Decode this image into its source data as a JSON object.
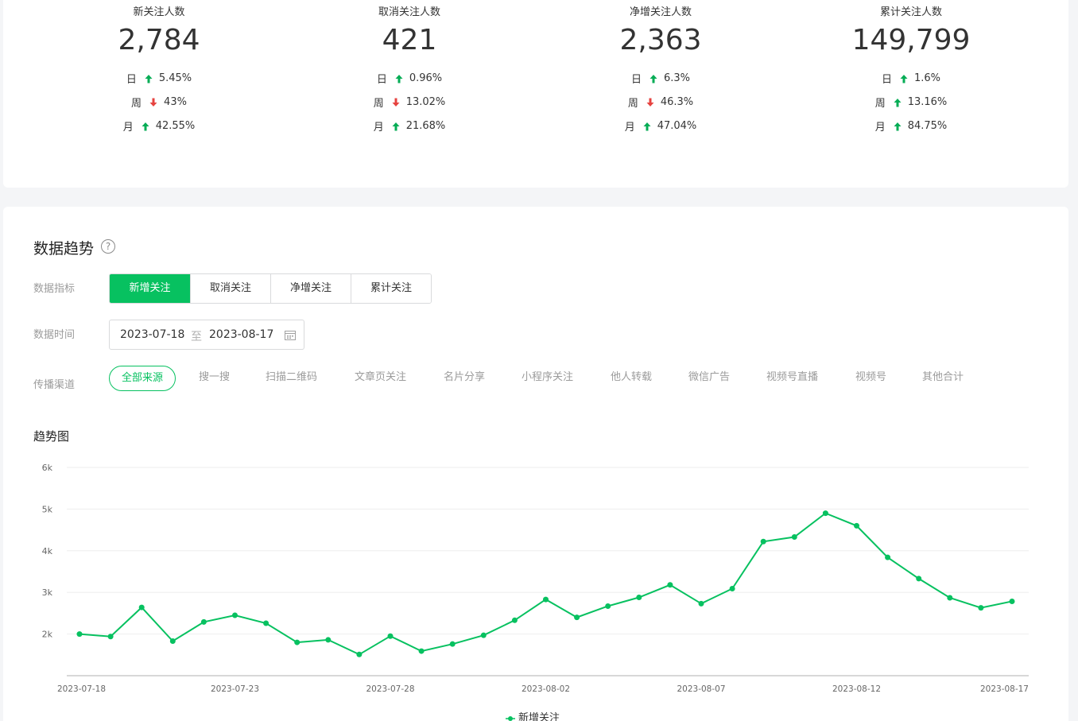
{
  "stats": [
    {
      "title": "新关注人数",
      "value": "2,784",
      "rows": [
        {
          "label": "日",
          "dir": "up",
          "pct": "5.45%"
        },
        {
          "label": "周",
          "dir": "down",
          "pct": "43%"
        },
        {
          "label": "月",
          "dir": "up",
          "pct": "42.55%"
        }
      ]
    },
    {
      "title": "取消关注人数",
      "value": "421",
      "rows": [
        {
          "label": "日",
          "dir": "up",
          "pct": "0.96%"
        },
        {
          "label": "周",
          "dir": "down",
          "pct": "13.02%"
        },
        {
          "label": "月",
          "dir": "up",
          "pct": "21.68%"
        }
      ]
    },
    {
      "title": "净增关注人数",
      "value": "2,363",
      "rows": [
        {
          "label": "日",
          "dir": "up",
          "pct": "6.3%"
        },
        {
          "label": "周",
          "dir": "down",
          "pct": "46.3%"
        },
        {
          "label": "月",
          "dir": "up",
          "pct": "47.04%"
        }
      ]
    },
    {
      "title": "累计关注人数",
      "value": "149,799",
      "rows": [
        {
          "label": "日",
          "dir": "up",
          "pct": "1.6%"
        },
        {
          "label": "周",
          "dir": "up",
          "pct": "13.16%"
        },
        {
          "label": "月",
          "dir": "up",
          "pct": "84.75%"
        }
      ]
    }
  ],
  "colors": {
    "up": "#06ad56",
    "down": "#e64340",
    "accent": "#07c160"
  },
  "trend": {
    "title": "数据趋势",
    "help_glyph": "?",
    "metric_label": "数据指标",
    "metrics": [
      "新增关注",
      "取消关注",
      "净增关注",
      "累计关注"
    ],
    "metric_selected": "新增关注",
    "time_label": "数据时间",
    "date_start": "2023-07-18",
    "date_sep": "至",
    "date_end": "2023-08-17",
    "channel_label": "传播渠道",
    "channels": [
      "全部来源",
      "搜一搜",
      "扫描二维码",
      "文章页关注",
      "名片分享",
      "小程序关注",
      "他人转载",
      "微信广告",
      "视频号直播",
      "视频号",
      "其他合计"
    ],
    "channel_selected": "全部来源",
    "chart_title": "趋势图",
    "legend": "新增关注"
  },
  "chart_data": {
    "type": "line",
    "dates": [
      "2023-07-18",
      "2023-07-19",
      "2023-07-20",
      "2023-07-21",
      "2023-07-22",
      "2023-07-23",
      "2023-07-24",
      "2023-07-25",
      "2023-07-26",
      "2023-07-27",
      "2023-07-28",
      "2023-07-29",
      "2023-07-30",
      "2023-07-31",
      "2023-08-01",
      "2023-08-02",
      "2023-08-03",
      "2023-08-04",
      "2023-08-05",
      "2023-08-06",
      "2023-08-07",
      "2023-08-08",
      "2023-08-09",
      "2023-08-10",
      "2023-08-11",
      "2023-08-12",
      "2023-08-13",
      "2023-08-14",
      "2023-08-15",
      "2023-08-16",
      "2023-08-17"
    ],
    "x_tick_labels": [
      "2023-07-18",
      "2023-07-23",
      "2023-07-28",
      "2023-08-02",
      "2023-08-07",
      "2023-08-12",
      "2023-08-17"
    ],
    "y_tick_labels": [
      "2k",
      "3k",
      "4k",
      "5k",
      "6k"
    ],
    "ylim": [
      1000,
      6000
    ],
    "series": [
      {
        "name": "新增关注",
        "values": [
          2000,
          1940,
          2640,
          1830,
          2290,
          2450,
          2260,
          1800,
          1860,
          1510,
          1950,
          1590,
          1760,
          1970,
          2330,
          2830,
          2400,
          2670,
          2880,
          3180,
          2730,
          3090,
          4220,
          4330,
          4900,
          4600,
          3840,
          3330,
          2870,
          2630,
          2784
        ]
      }
    ],
    "grid": true,
    "legend_position": "bottom"
  }
}
